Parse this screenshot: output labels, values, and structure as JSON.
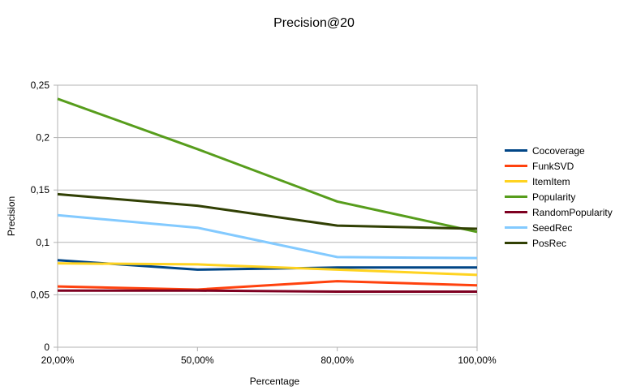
{
  "chart_data": {
    "type": "line",
    "title": "Precision@20",
    "xlabel": "Percentage",
    "ylabel": "Precision",
    "categories": [
      "20,00%",
      "50,00%",
      "80,00%",
      "100,00%"
    ],
    "ylim": [
      0,
      0.25
    ],
    "yticks": [
      {
        "value": 0,
        "label": "0"
      },
      {
        "value": 0.05,
        "label": "0,05"
      },
      {
        "value": 0.1,
        "label": "0,1"
      },
      {
        "value": 0.15,
        "label": "0,15"
      },
      {
        "value": 0.2,
        "label": "0,2"
      },
      {
        "value": 0.25,
        "label": "0,25"
      }
    ],
    "grid": true,
    "legend_position": "right",
    "series": [
      {
        "name": "Cocoverage",
        "color": "#004586",
        "values": [
          0.083,
          0.074,
          0.076,
          0.076
        ]
      },
      {
        "name": "FunkSVD",
        "color": "#ff420e",
        "values": [
          0.058,
          0.055,
          0.063,
          0.059
        ]
      },
      {
        "name": "ItemItem",
        "color": "#ffd320",
        "values": [
          0.08,
          0.079,
          0.074,
          0.069
        ]
      },
      {
        "name": "Popularity",
        "color": "#579d1c",
        "values": [
          0.237,
          0.189,
          0.139,
          0.11
        ]
      },
      {
        "name": "RandomPopularity",
        "color": "#7e0021",
        "values": [
          0.054,
          0.054,
          0.053,
          0.053
        ]
      },
      {
        "name": "SeedRec",
        "color": "#83caff",
        "values": [
          0.126,
          0.114,
          0.086,
          0.085
        ]
      },
      {
        "name": "PosRec",
        "color": "#314004",
        "values": [
          0.146,
          0.135,
          0.116,
          0.113
        ]
      }
    ]
  }
}
